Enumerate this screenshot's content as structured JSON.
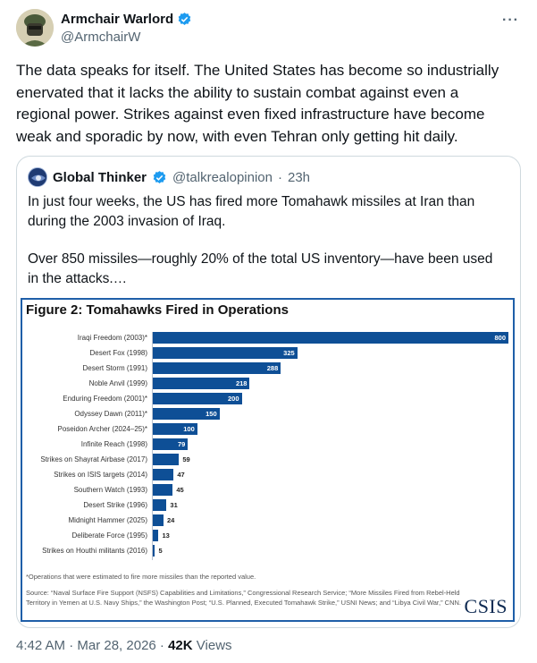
{
  "author": {
    "name": "Armchair Warlord",
    "handle": "@ArmchairW"
  },
  "more_icon": "···",
  "tweet_text": "The data speaks for itself.  The United States has become so industrially enervated that it lacks the ability to sustain combat against even a regional power.  Strikes against even fixed infrastructure have become weak and sporadic by now, with even Tehran only getting hit daily.",
  "quote": {
    "name": "Global Thinker",
    "handle": "@talkrealopinion",
    "dot": "·",
    "time": "23h",
    "text_1": "In just four weeks, the US has fired more Tomahawk missiles at Iran than during the 2003 invasion of Iraq.",
    "text_2": "Over 850 missiles—roughly 20% of the total US inventory—have been used in the attacks.…"
  },
  "colors": {
    "bar": "#0e4f96",
    "verified": "#1d9bf0",
    "frame": "#1f5fa8"
  },
  "chart_data": {
    "type": "bar",
    "orientation": "horizontal",
    "title": "Figure 2: Tomahawks Fired in Operations",
    "categories": [
      "Iraqi Freedom (2003)*",
      "Desert Fox (1998)",
      "Desert Storm (1991)",
      "Noble Anvil (1999)",
      "Enduring Freedom (2001)*",
      "Odyssey Dawn (2011)*",
      "Poseidon Archer (2024–25)*",
      "Infinite Reach (1998)",
      "Strikes on Shayrat Airbase (2017)",
      "Strikes on ISIS targets (2014)",
      "Southern Watch (1993)",
      "Desert Strike (1996)",
      "Midnight Hammer (2025)",
      "Deliberate Force (1995)",
      "Strikes on Houthi militants (2016)"
    ],
    "values": [
      800,
      325,
      288,
      218,
      200,
      150,
      100,
      79,
      59,
      47,
      45,
      31,
      24,
      13,
      5
    ],
    "xlim": [
      0,
      800
    ],
    "footnote": "*Operations that were estimated to fire more missiles than the reported value.",
    "source": "Source: “Naval Surface Fire Support (NSFS) Capabilities and Limitations,” Congressional Research Service; “More Missiles Fired from Rebel-Held Territory in Yemen at U.S. Navy Ships,” the Washington Post; “U.S. Planned, Executed Tomahawk Strike,” USNI News; and “Libya Civil War,” CNN.",
    "logo": "CSIS"
  },
  "footer": {
    "time": "4:42 AM · Mar 28, 2026 · ",
    "views_count": "42K",
    "views_label": " Views"
  }
}
